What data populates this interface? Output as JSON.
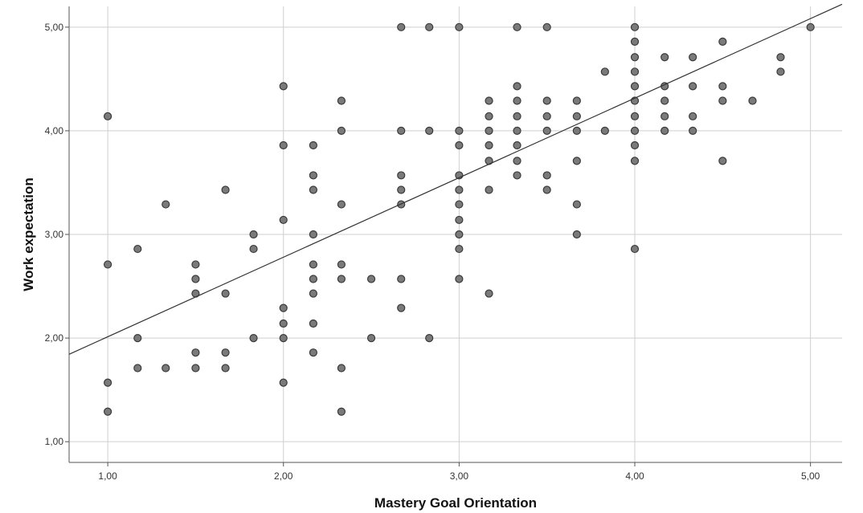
{
  "chart_data": {
    "type": "scatter",
    "title": "",
    "xlabel": "Mastery Goal Orientation",
    "ylabel": "Work expectation",
    "xlim": [
      0.78,
      5.18
    ],
    "ylim": [
      0.8,
      5.2
    ],
    "xticks": [
      1,
      2,
      3,
      4,
      5
    ],
    "yticks": [
      1,
      2,
      3,
      4,
      5
    ],
    "xtick_labels": [
      "1,00",
      "2,00",
      "3,00",
      "4,00",
      "5,00"
    ],
    "ytick_labels": [
      "1,00",
      "2,00",
      "3,00",
      "4,00",
      "5,00"
    ],
    "grid": true,
    "legend": "none",
    "fit_line": {
      "intercept": 1.245,
      "slope": 0.7675
    },
    "colors": {
      "point_fill": "#7a7a7a",
      "point_stroke": "#3a3a3a",
      "grid": "#cfcfcf",
      "line": "#333333"
    },
    "points": [
      [
        1.0,
        4.14
      ],
      [
        1.0,
        2.71
      ],
      [
        1.0,
        1.57
      ],
      [
        1.0,
        1.29
      ],
      [
        1.17,
        2.86
      ],
      [
        1.17,
        2.0
      ],
      [
        1.17,
        1.71
      ],
      [
        1.33,
        3.29
      ],
      [
        1.33,
        1.71
      ],
      [
        1.5,
        2.71
      ],
      [
        1.5,
        2.57
      ],
      [
        1.5,
        2.43
      ],
      [
        1.5,
        1.86
      ],
      [
        1.5,
        1.71
      ],
      [
        1.67,
        3.43
      ],
      [
        1.67,
        2.43
      ],
      [
        1.67,
        1.86
      ],
      [
        1.67,
        1.71
      ],
      [
        1.83,
        3.0
      ],
      [
        1.83,
        2.86
      ],
      [
        1.83,
        2.0
      ],
      [
        2.0,
        4.43
      ],
      [
        2.0,
        3.86
      ],
      [
        2.0,
        3.14
      ],
      [
        2.0,
        2.29
      ],
      [
        2.0,
        2.14
      ],
      [
        2.0,
        2.0
      ],
      [
        2.0,
        1.57
      ],
      [
        2.17,
        3.86
      ],
      [
        2.17,
        3.57
      ],
      [
        2.17,
        3.43
      ],
      [
        2.17,
        3.0
      ],
      [
        2.17,
        2.71
      ],
      [
        2.17,
        2.57
      ],
      [
        2.17,
        2.43
      ],
      [
        2.17,
        2.14
      ],
      [
        2.17,
        1.86
      ],
      [
        2.33,
        4.29
      ],
      [
        2.33,
        4.0
      ],
      [
        2.33,
        3.29
      ],
      [
        2.33,
        2.71
      ],
      [
        2.33,
        2.57
      ],
      [
        2.33,
        1.71
      ],
      [
        2.33,
        1.29
      ],
      [
        2.5,
        2.57
      ],
      [
        2.5,
        2.0
      ],
      [
        2.67,
        5.0
      ],
      [
        2.67,
        4.0
      ],
      [
        2.67,
        3.57
      ],
      [
        2.67,
        3.43
      ],
      [
        2.67,
        3.29
      ],
      [
        2.67,
        2.57
      ],
      [
        2.67,
        2.29
      ],
      [
        2.83,
        5.0
      ],
      [
        2.83,
        4.0
      ],
      [
        2.83,
        2.0
      ],
      [
        3.0,
        5.0
      ],
      [
        3.0,
        4.0
      ],
      [
        3.0,
        3.86
      ],
      [
        3.0,
        3.57
      ],
      [
        3.0,
        3.43
      ],
      [
        3.0,
        3.29
      ],
      [
        3.0,
        3.14
      ],
      [
        3.0,
        3.0
      ],
      [
        3.0,
        2.86
      ],
      [
        3.0,
        2.57
      ],
      [
        3.17,
        4.29
      ],
      [
        3.17,
        4.14
      ],
      [
        3.17,
        4.0
      ],
      [
        3.17,
        3.86
      ],
      [
        3.17,
        3.71
      ],
      [
        3.17,
        3.43
      ],
      [
        3.17,
        2.43
      ],
      [
        3.33,
        5.0
      ],
      [
        3.33,
        4.43
      ],
      [
        3.33,
        4.29
      ],
      [
        3.33,
        4.14
      ],
      [
        3.33,
        4.0
      ],
      [
        3.33,
        3.86
      ],
      [
        3.33,
        3.71
      ],
      [
        3.33,
        3.57
      ],
      [
        3.5,
        5.0
      ],
      [
        3.5,
        4.29
      ],
      [
        3.5,
        4.14
      ],
      [
        3.5,
        4.0
      ],
      [
        3.5,
        3.57
      ],
      [
        3.5,
        3.43
      ],
      [
        3.67,
        4.29
      ],
      [
        3.67,
        4.14
      ],
      [
        3.67,
        4.0
      ],
      [
        3.67,
        3.71
      ],
      [
        3.67,
        3.29
      ],
      [
        3.67,
        3.0
      ],
      [
        3.83,
        4.57
      ],
      [
        3.83,
        4.0
      ],
      [
        4.0,
        5.0
      ],
      [
        4.0,
        4.86
      ],
      [
        4.0,
        4.71
      ],
      [
        4.0,
        4.57
      ],
      [
        4.0,
        4.43
      ],
      [
        4.0,
        4.29
      ],
      [
        4.0,
        4.14
      ],
      [
        4.0,
        4.0
      ],
      [
        4.0,
        3.86
      ],
      [
        4.0,
        3.71
      ],
      [
        4.0,
        2.86
      ],
      [
        4.17,
        4.71
      ],
      [
        4.17,
        4.43
      ],
      [
        4.17,
        4.29
      ],
      [
        4.17,
        4.14
      ],
      [
        4.17,
        4.0
      ],
      [
        4.33,
        4.71
      ],
      [
        4.33,
        4.43
      ],
      [
        4.33,
        4.14
      ],
      [
        4.33,
        4.0
      ],
      [
        4.5,
        4.86
      ],
      [
        4.5,
        4.43
      ],
      [
        4.5,
        4.29
      ],
      [
        4.5,
        3.71
      ],
      [
        4.67,
        4.29
      ],
      [
        4.83,
        4.71
      ],
      [
        4.83,
        4.57
      ],
      [
        5.0,
        5.0
      ]
    ]
  }
}
